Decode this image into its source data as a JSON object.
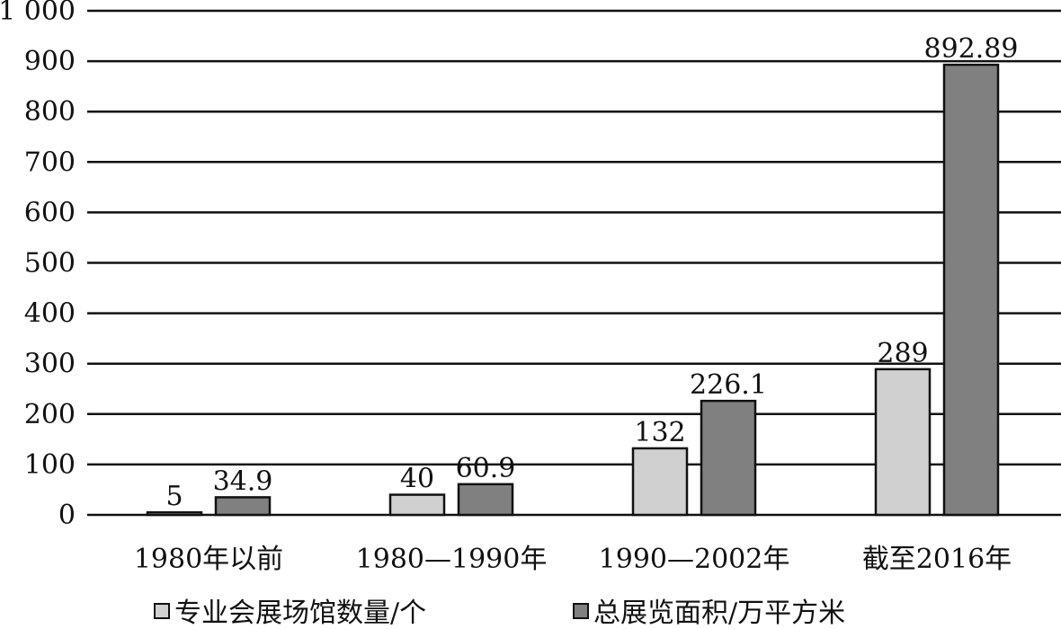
{
  "chart_data": {
    "type": "bar",
    "categories": [
      "1980年以前",
      "1980—1990年",
      "1990—2002年",
      "截至2016年"
    ],
    "series": [
      {
        "name": "专业会展场馆数量/个",
        "values": [
          5,
          40,
          132,
          289
        ],
        "labels": [
          "5",
          "40",
          "132",
          "289"
        ],
        "color": "#d0d0d0"
      },
      {
        "name": "总展览面积/万平方米",
        "values": [
          34.9,
          60.9,
          226.1,
          892.89
        ],
        "labels": [
          "34.9",
          "60.9",
          "226.1",
          "892.89"
        ],
        "color": "#808080"
      }
    ],
    "ylim": [
      0,
      1000
    ],
    "yticks": [
      0,
      100,
      200,
      300,
      400,
      500,
      600,
      700,
      800,
      900,
      1000
    ],
    "ytick_labels": [
      "0",
      "100",
      "200",
      "300",
      "400",
      "500",
      "600",
      "700",
      "800",
      "900",
      "1 000"
    ],
    "grid": true,
    "legend_position": "bottom",
    "title": "",
    "xlabel": "",
    "ylabel": ""
  }
}
